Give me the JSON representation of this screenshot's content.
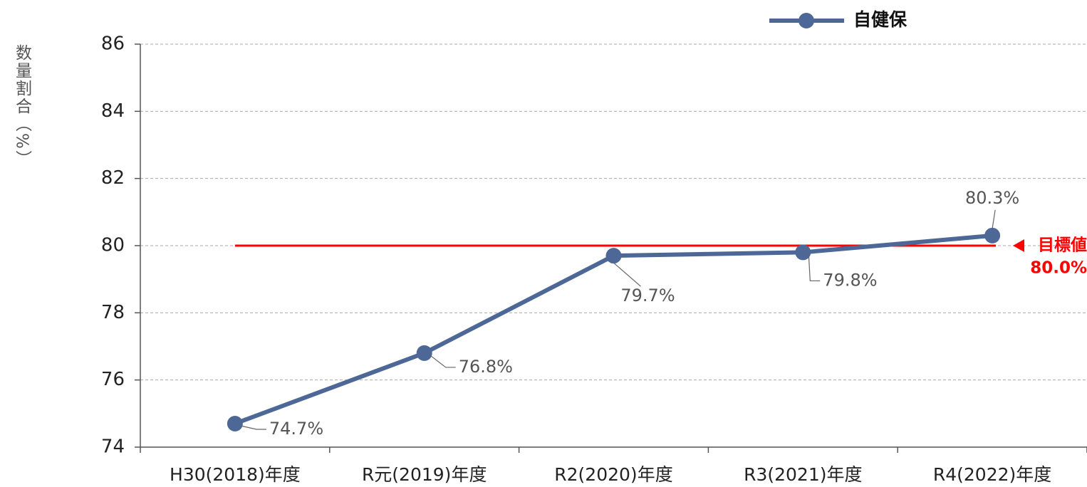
{
  "chart_data": {
    "type": "line",
    "y_label": "数量割合（%）",
    "categories": [
      "H30(2018)年度",
      "R元(2019)年度",
      "R2(2020)年度",
      "R3(2021)年度",
      "R4(2022)年度"
    ],
    "series": [
      {
        "name": "自健保",
        "color": "#4d6897",
        "values": [
          74.7,
          76.8,
          79.7,
          79.8,
          80.3
        ],
        "value_labels": [
          "74.7%",
          "76.8%",
          "79.7%",
          "79.8%",
          "80.3%"
        ]
      }
    ],
    "target": {
      "value": 80,
      "label": "目標値",
      "value_label": "80.0%",
      "color": "#ff0000"
    },
    "ylim": [
      74,
      86
    ],
    "yticks": [
      74,
      76,
      78,
      80,
      82,
      84,
      86
    ],
    "grid": true,
    "legend": "top"
  }
}
